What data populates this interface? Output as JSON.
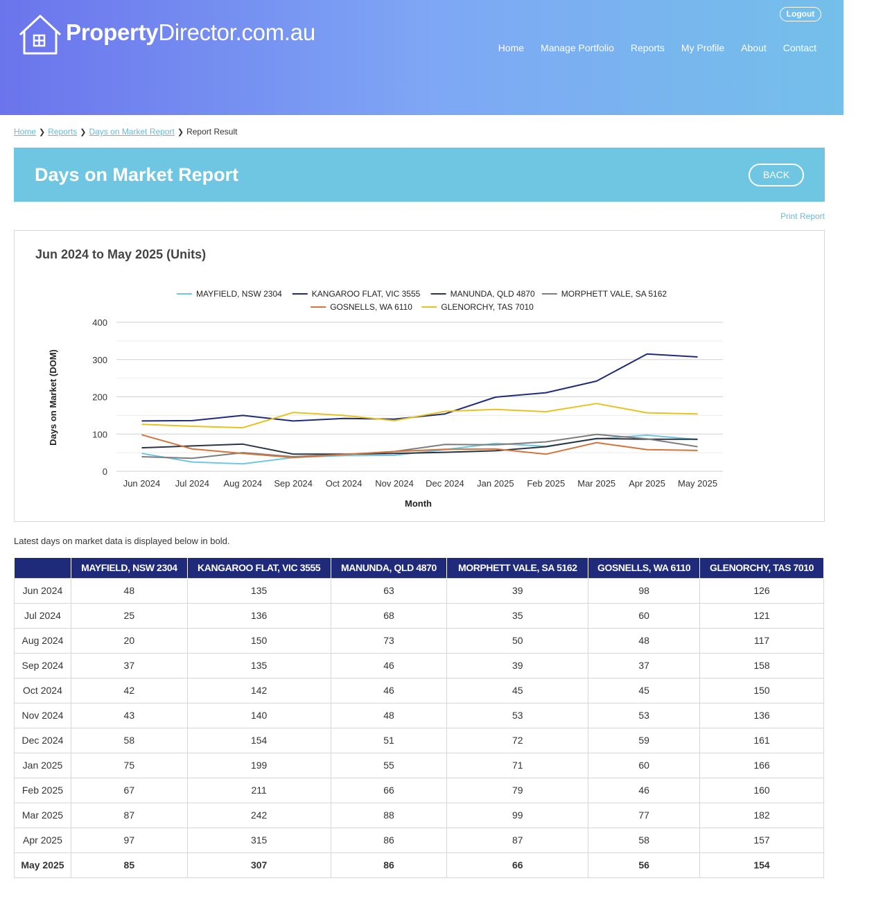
{
  "brand": {
    "bold": "Property",
    "rest": "Director.com.au"
  },
  "header": {
    "logout": "Logout",
    "nav": [
      "Home",
      "Manage Portfolio",
      "Reports",
      "My Profile",
      "About",
      "Contact"
    ]
  },
  "breadcrumb": {
    "home": "Home",
    "reports": "Reports",
    "dom": "Days on Market Report",
    "current": "Report Result"
  },
  "page": {
    "title": "Days on Market Report",
    "back": "BACK",
    "print": "Print Report",
    "note": "Latest days on market data is displayed below in bold."
  },
  "colors": {
    "accent": "#6fc6e2",
    "table_header": "#1f2a7a",
    "series": [
      "#6ec6e3",
      "#1f2a7a",
      "#2b3440",
      "#7c7c7c",
      "#d4733b",
      "#e6c21f"
    ]
  },
  "chart_data": {
    "type": "line",
    "title": "Jun 2024 to May 2025 (Units)",
    "xlabel": "Month",
    "ylabel": "Days on Market (DOM)",
    "ylim": [
      0,
      400
    ],
    "yticks": [
      0,
      100,
      200,
      300,
      400
    ],
    "grid": true,
    "legend_position": "top",
    "categories": [
      "Jun 2024",
      "Jul 2024",
      "Aug 2024",
      "Sep 2024",
      "Oct 2024",
      "Nov 2024",
      "Dec 2024",
      "Jan 2025",
      "Feb 2025",
      "Mar 2025",
      "Apr 2025",
      "May 2025"
    ],
    "series": [
      {
        "name": "MAYFIELD, NSW 2304",
        "values": [
          48,
          25,
          20,
          37,
          42,
          43,
          58,
          75,
          67,
          87,
          97,
          85
        ]
      },
      {
        "name": "KANGAROO FLAT, VIC 3555",
        "values": [
          135,
          136,
          150,
          135,
          142,
          140,
          154,
          199,
          211,
          242,
          315,
          307
        ]
      },
      {
        "name": "MANUNDA, QLD 4870",
        "values": [
          63,
          68,
          73,
          46,
          46,
          48,
          51,
          55,
          66,
          88,
          86,
          86
        ]
      },
      {
        "name": "MORPHETT VALE, SA 5162",
        "values": [
          39,
          35,
          50,
          39,
          45,
          53,
          72,
          71,
          79,
          99,
          87,
          66
        ]
      },
      {
        "name": "GOSNELLS, WA 6110",
        "values": [
          98,
          60,
          48,
          37,
          45,
          53,
          59,
          60,
          46,
          77,
          58,
          56
        ]
      },
      {
        "name": "GLENORCHY, TAS 7010",
        "values": [
          126,
          121,
          117,
          158,
          150,
          136,
          161,
          166,
          160,
          182,
          157,
          154
        ]
      }
    ]
  }
}
